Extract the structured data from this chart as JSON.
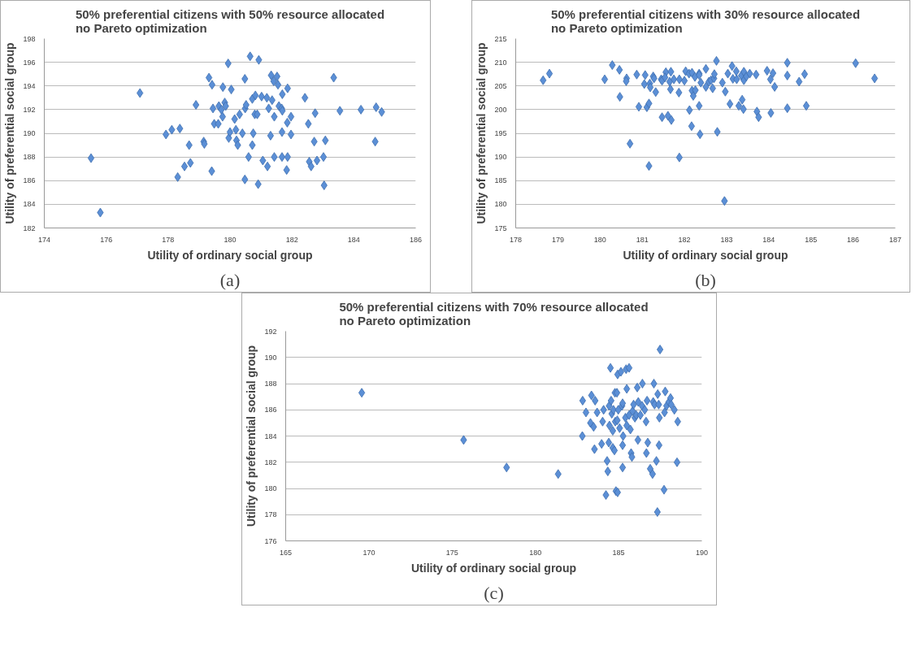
{
  "chart_data": [
    {
      "type": "scatter",
      "title": "50% preferential citizens with 50% resource allocated\nno Pareto optimization",
      "xlabel": "Utility of ordinary social group",
      "ylabel": "Utility of preferential social group",
      "annotations": [
        "(a)"
      ],
      "marker": "diamond",
      "grid": "y",
      "xlim": [
        174,
        186
      ],
      "xticks": [
        174,
        176,
        178,
        180,
        182,
        184,
        186
      ],
      "ylim": [
        182,
        198
      ],
      "yticks": [
        182,
        184,
        186,
        188,
        190,
        192,
        194,
        196,
        198
      ],
      "series": [
        {
          "color": "#5b8fd6",
          "x": [
            175.51,
            175.81,
            177.09,
            177.93,
            178.12,
            178.38,
            178.31,
            178.53,
            178.72,
            178.68,
            178.9,
            179.15,
            179.17,
            179.32,
            179.42,
            179.45,
            179.41,
            179.49,
            179.62,
            179.64,
            179.72,
            179.76,
            179.77,
            179.83,
            179.86,
            179.94,
            179.96,
            180.0,
            180.04,
            180.15,
            180.19,
            180.21,
            180.25,
            180.31,
            180.4,
            180.48,
            180.49,
            180.52,
            180.48,
            180.6,
            180.65,
            180.72,
            180.72,
            180.75,
            180.8,
            180.82,
            180.88,
            180.91,
            180.93,
            181.02,
            181.06,
            181.19,
            181.21,
            181.25,
            181.31,
            181.33,
            181.36,
            181.41,
            181.43,
            181.43,
            181.52,
            181.55,
            181.58,
            181.67,
            181.69,
            181.68,
            181.69,
            181.68,
            181.86,
            181.85,
            181.86,
            181.83,
            181.97,
            181.97,
            182.42,
            182.53,
            182.56,
            182.62,
            182.72,
            182.75,
            182.81,
            183.02,
            183.04,
            183.08,
            183.35,
            183.55,
            184.23,
            184.69,
            184.72,
            184.9
          ],
          "values": [
            187.9,
            183.3,
            193.4,
            189.9,
            190.3,
            190.4,
            186.3,
            187.2,
            187.5,
            189.0,
            192.4,
            189.3,
            189.1,
            194.7,
            194.1,
            192.1,
            186.8,
            190.8,
            190.8,
            192.3,
            192.0,
            191.4,
            193.9,
            192.6,
            192.3,
            195.9,
            189.6,
            190.1,
            193.7,
            191.2,
            190.3,
            189.4,
            189.0,
            191.6,
            190.0,
            194.6,
            192.1,
            192.4,
            186.1,
            188.0,
            196.5,
            192.9,
            189.0,
            190.0,
            191.6,
            193.2,
            191.6,
            185.7,
            196.2,
            193.1,
            187.7,
            193.0,
            187.2,
            192.1,
            189.8,
            194.9,
            192.8,
            194.4,
            191.4,
            188.0,
            194.8,
            194.1,
            192.3,
            192.1,
            193.3,
            190.1,
            191.9,
            188.0,
            193.8,
            190.9,
            188.0,
            186.9,
            191.4,
            189.9,
            193.0,
            190.8,
            187.6,
            187.2,
            189.3,
            191.7,
            187.7,
            188.0,
            185.6,
            189.4,
            194.7,
            191.9,
            192.0,
            189.3,
            192.2,
            191.8
          ]
        }
      ]
    },
    {
      "type": "scatter",
      "title": "50% preferential citizens with 30% resource allocated\nno Pareto optimization",
      "xlabel": "Utility of ordinary social group",
      "ylabel": "Utility of preferential social group",
      "annotations": [
        "(b)"
      ],
      "marker": "diamond",
      "grid": "y",
      "xlim": [
        178,
        187
      ],
      "xticks": [
        178,
        179,
        180,
        181,
        182,
        183,
        184,
        185,
        186,
        187
      ],
      "ylim": [
        175,
        215
      ],
      "yticks": [
        175,
        180,
        185,
        190,
        195,
        200,
        205,
        210,
        215
      ],
      "series": [
        {
          "color": "#5b8fd6",
          "x": [
            178.65,
            178.8,
            180.11,
            180.29,
            180.46,
            180.47,
            180.63,
            180.62,
            180.71,
            180.87,
            180.92,
            181.07,
            181.05,
            181.11,
            181.16,
            181.18,
            181.19,
            181.16,
            181.26,
            181.28,
            181.32,
            181.45,
            181.47,
            181.47,
            181.56,
            181.54,
            181.61,
            181.65,
            181.67,
            181.68,
            181.69,
            181.75,
            181.87,
            181.88,
            181.88,
            182.0,
            182.03,
            182.11,
            182.12,
            182.18,
            182.17,
            182.18,
            182.21,
            182.25,
            182.26,
            182.35,
            182.35,
            182.35,
            182.37,
            182.39,
            182.51,
            182.51,
            182.58,
            182.63,
            182.67,
            182.7,
            182.71,
            182.76,
            182.78,
            182.9,
            182.95,
            182.97,
            183.03,
            183.08,
            183.13,
            183.15,
            183.23,
            183.24,
            183.29,
            183.35,
            183.37,
            183.4,
            183.41,
            183.41,
            183.47,
            183.55,
            183.7,
            183.72,
            183.76,
            183.96,
            184.04,
            184.05,
            184.1,
            184.14,
            184.44,
            184.44,
            184.44,
            184.72,
            184.85,
            184.89,
            186.06,
            186.51
          ],
          "values": [
            206.2,
            207.6,
            206.4,
            209.4,
            208.4,
            202.7,
            206.6,
            206.0,
            192.8,
            207.4,
            200.6,
            207.3,
            205.4,
            200.5,
            201.3,
            205.5,
            204.7,
            188.1,
            207.0,
            206.6,
            203.7,
            206.4,
            206.1,
            198.4,
            207.9,
            206.8,
            198.7,
            205.9,
            204.3,
            208.0,
            197.8,
            206.4,
            203.6,
            206.4,
            189.9,
            206.1,
            208.1,
            207.6,
            199.9,
            207.8,
            196.5,
            204.0,
            202.9,
            206.9,
            204.1,
            207.6,
            207.3,
            200.8,
            194.8,
            205.7,
            204.8,
            208.6,
            205.9,
            206.2,
            204.5,
            206.6,
            207.5,
            210.3,
            195.3,
            205.7,
            180.7,
            203.8,
            207.6,
            201.2,
            209.2,
            206.5,
            208.1,
            206.4,
            200.8,
            207.2,
            202.1,
            200.1,
            208.0,
            206.2,
            207.0,
            207.6,
            207.4,
            199.6,
            198.4,
            208.2,
            206.4,
            199.3,
            207.7,
            204.8,
            209.9,
            207.2,
            200.3,
            205.9,
            207.5,
            200.8,
            209.8,
            206.6
          ]
        }
      ]
    },
    {
      "type": "scatter",
      "title": "50% preferential citizens with 70% resource allocated\nno Pareto optimization",
      "xlabel": "Utility of ordinary social group",
      "ylabel": "Utility of preferential social group",
      "annotations": [
        "(c)"
      ],
      "marker": "diamond",
      "grid": "y",
      "xlim": [
        165,
        190
      ],
      "xticks": [
        165,
        170,
        175,
        180,
        185,
        190
      ],
      "ylim": [
        176,
        192
      ],
      "yticks": [
        176,
        178,
        180,
        182,
        184,
        186,
        188,
        190,
        192
      ],
      "series": [
        {
          "color": "#5b8fd6",
          "x": [
            169.57,
            175.69,
            178.27,
            181.37,
            182.84,
            182.82,
            183.04,
            183.31,
            183.37,
            183.5,
            183.59,
            183.55,
            183.71,
            183.98,
            184.04,
            184.1,
            184.31,
            184.35,
            184.24,
            184.43,
            184.41,
            184.45,
            184.51,
            184.55,
            184.59,
            184.65,
            184.65,
            184.69,
            184.75,
            184.78,
            184.8,
            184.84,
            184.9,
            184.92,
            184.94,
            184.94,
            184.98,
            185.06,
            185.14,
            185.2,
            185.24,
            185.27,
            185.24,
            185.24,
            185.41,
            185.45,
            185.49,
            185.49,
            185.63,
            185.63,
            185.71,
            185.75,
            185.8,
            185.84,
            185.9,
            185.98,
            186.06,
            186.12,
            186.16,
            186.18,
            186.31,
            186.43,
            186.41,
            186.57,
            186.65,
            186.67,
            186.71,
            186.75,
            186.9,
            187.04,
            187.08,
            187.12,
            187.16,
            187.27,
            187.33,
            187.35,
            187.41,
            187.45,
            187.43,
            187.49,
            187.73,
            187.76,
            187.8,
            187.88,
            188.02,
            188.12,
            188.16,
            188.35,
            188.51,
            188.55
          ],
          "values": [
            187.3,
            183.7,
            181.6,
            181.1,
            186.7,
            184.0,
            185.8,
            185.0,
            187.1,
            184.7,
            186.7,
            183.0,
            185.8,
            183.4,
            185.1,
            186.0,
            182.1,
            181.3,
            179.5,
            186.3,
            183.5,
            184.8,
            189.2,
            186.7,
            185.7,
            184.4,
            183.1,
            186.0,
            182.9,
            187.3,
            185.1,
            179.8,
            187.3,
            185.2,
            188.7,
            179.7,
            186.0,
            184.6,
            188.9,
            186.3,
            186.5,
            184.0,
            183.3,
            181.6,
            185.4,
            189.1,
            187.6,
            184.8,
            189.2,
            185.6,
            184.5,
            182.7,
            182.4,
            185.9,
            186.4,
            185.4,
            185.6,
            187.7,
            183.7,
            186.6,
            185.6,
            188.0,
            186.3,
            186.0,
            185.1,
            182.7,
            186.7,
            183.5,
            181.5,
            181.1,
            186.6,
            188.0,
            186.4,
            182.1,
            178.2,
            187.2,
            186.4,
            185.4,
            183.3,
            190.6,
            179.9,
            185.8,
            187.4,
            186.3,
            186.6,
            186.9,
            186.4,
            186.0,
            182.0,
            185.1
          ]
        }
      ]
    }
  ]
}
